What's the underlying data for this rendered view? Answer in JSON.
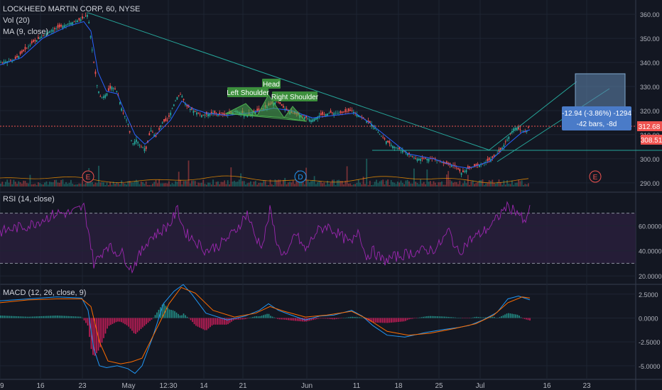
{
  "header": {
    "title": "LOCKHEED MARTIN CORP, 60, NYSE",
    "vol": "Vol (20)",
    "ma": "MA (9, close)"
  },
  "chart_data": [
    {
      "type": "line",
      "subtype": "candlestick",
      "symbol": "LOCKHEED MARTIN CORP",
      "interval": "60",
      "exchange": "NYSE",
      "y_ticks": [
        "360.00",
        "350.00",
        "340.00",
        "330.00",
        "320.00",
        "310.00",
        "300.00",
        "290.00"
      ],
      "ylim": [
        287,
        363
      ],
      "x_ticks": [
        "9",
        "16",
        "23",
        "May",
        "12:30",
        "14",
        "21",
        "Jun",
        "11",
        "18",
        "25",
        "Jul",
        "16",
        "23"
      ],
      "last_price": "312.68",
      "last_price_value": 312.68,
      "prev_label": "308.51",
      "prev_label_value": 308.51,
      "series": [
        {
          "name": "Price",
          "points": [
            [
              0,
              340
            ],
            [
              20,
              341
            ],
            [
              45,
              348
            ],
            [
              70,
              353
            ],
            [
              95,
              356
            ],
            [
              115,
              358
            ],
            [
              124,
              360
            ],
            [
              127,
              352
            ],
            [
              132,
              340
            ],
            [
              137,
              330
            ],
            [
              142,
              325
            ],
            [
              150,
              327
            ],
            [
              157,
              330
            ],
            [
              165,
              328
            ],
            [
              172,
              320
            ],
            [
              180,
              315
            ],
            [
              186,
              306
            ],
            [
              192,
              308
            ],
            [
              198,
              305
            ],
            [
              206,
              304
            ],
            [
              212,
              312
            ],
            [
              220,
              309
            ],
            [
              228,
              315
            ],
            [
              236,
              316
            ],
            [
              244,
              322
            ],
            [
              250,
              326
            ],
            [
              255,
              327
            ],
            [
              262,
              322
            ],
            [
              272,
              320
            ],
            [
              285,
              318
            ],
            [
              300,
              319
            ],
            [
              318,
              318
            ],
            [
              332,
              320
            ],
            [
              348,
              318
            ],
            [
              365,
              320
            ],
            [
              378,
              322
            ],
            [
              390,
              324
            ],
            [
              400,
              321
            ],
            [
              410,
              319
            ],
            [
              425,
              318
            ],
            [
              438,
              316
            ],
            [
              450,
              318
            ],
            [
              465,
              319
            ],
            [
              480,
              319
            ],
            [
              495,
              320
            ],
            [
              505,
              318
            ],
            [
              515,
              316
            ],
            [
              525,
              314
            ],
            [
              535,
              310
            ],
            [
              545,
              307
            ],
            [
              555,
              305
            ],
            [
              570,
              303
            ],
            [
              585,
              300
            ],
            [
              598,
              300
            ],
            [
              612,
              300
            ],
            [
              625,
              298
            ],
            [
              640,
              297
            ],
            [
              650,
              294
            ],
            [
              660,
              296
            ],
            [
              670,
              297
            ],
            [
              680,
              298
            ],
            [
              692,
              300
            ],
            [
              700,
              302
            ],
            [
              708,
              305
            ],
            [
              716,
              309
            ],
            [
              724,
              313
            ],
            [
              732,
              312
            ],
            [
              740,
              311
            ],
            [
              746,
              314
            ]
          ]
        },
        {
          "name": "MA (9, close)",
          "points": [
            [
              0,
              339
            ],
            [
              30,
              342
            ],
            [
              60,
              350
            ],
            [
              95,
              355
            ],
            [
              118,
              357
            ],
            [
              128,
              353
            ],
            [
              138,
              336
            ],
            [
              150,
              328
            ],
            [
              165,
              327
            ],
            [
              178,
              318
            ],
            [
              190,
              310
            ],
            [
              204,
              306
            ],
            [
              220,
              310
            ],
            [
              240,
              316
            ],
            [
              256,
              324
            ],
            [
              270,
              321
            ],
            [
              290,
              319
            ],
            [
              320,
              318
            ],
            [
              350,
              319
            ],
            [
              385,
              321
            ],
            [
              410,
              320
            ],
            [
              440,
              317
            ],
            [
              470,
              318
            ],
            [
              500,
              319
            ],
            [
              520,
              315
            ],
            [
              545,
              309
            ],
            [
              575,
              302
            ],
            [
              610,
              300
            ],
            [
              640,
              297
            ],
            [
              660,
              296
            ],
            [
              690,
              299
            ],
            [
              715,
              306
            ],
            [
              735,
              311
            ],
            [
              746,
              312
            ]
          ]
        }
      ],
      "annotations": [
        "Left Shoulder",
        "Head",
        "Right Shoulder"
      ],
      "event_markers": [
        "E",
        "D",
        "E"
      ],
      "measure": {
        "line1": "-12.94 (-3.86%) -1294",
        "line2": "-42 bars, -8d"
      },
      "colors": {
        "up": "#26a69a",
        "down": "#ef5350",
        "ma": "#2962ff",
        "pattern": "#4caf50",
        "trend": "#26a69a"
      }
    },
    {
      "type": "line",
      "title": "RSI (14, close)",
      "ylim": [
        15,
        85
      ],
      "y_ticks": [
        "60.0000",
        "40.0000",
        "20.0000"
      ],
      "bands": [
        70,
        30
      ],
      "series": [
        {
          "name": "RSI",
          "points": [
            [
              0,
              55
            ],
            [
              20,
              58
            ],
            [
              40,
              60
            ],
            [
              60,
              65
            ],
            [
              80,
              70
            ],
            [
              100,
              70
            ],
            [
              118,
              75
            ],
            [
              125,
              55
            ],
            [
              132,
              30
            ],
            [
              140,
              35
            ],
            [
              150,
              45
            ],
            [
              160,
              40
            ],
            [
              172,
              38
            ],
            [
              185,
              25
            ],
            [
              195,
              35
            ],
            [
              210,
              50
            ],
            [
              225,
              55
            ],
            [
              240,
              62
            ],
            [
              250,
              73
            ],
            [
              260,
              55
            ],
            [
              275,
              48
            ],
            [
              290,
              40
            ],
            [
              310,
              45
            ],
            [
              330,
              55
            ],
            [
              348,
              70
            ],
            [
              360,
              50
            ],
            [
              370,
              45
            ],
            [
              380,
              72
            ],
            [
              392,
              42
            ],
            [
              405,
              35
            ],
            [
              415,
              55
            ],
            [
              430,
              40
            ],
            [
              445,
              55
            ],
            [
              460,
              60
            ],
            [
              480,
              52
            ],
            [
              495,
              45
            ],
            [
              505,
              58
            ],
            [
              515,
              35
            ],
            [
              525,
              40
            ],
            [
              540,
              32
            ],
            [
              555,
              35
            ],
            [
              575,
              38
            ],
            [
              595,
              40
            ],
            [
              615,
              42
            ],
            [
              632,
              56
            ],
            [
              645,
              38
            ],
            [
              660,
              48
            ],
            [
              680,
              55
            ],
            [
              695,
              62
            ],
            [
              712,
              75
            ],
            [
              728,
              72
            ],
            [
              740,
              60
            ],
            [
              746,
              78
            ]
          ]
        }
      ],
      "colors": {
        "line": "#9c27b0",
        "band_fill": "#2a1f3d"
      }
    },
    {
      "type": "line",
      "title": "MACD (12, 26, close, 9)",
      "ylim": [
        -6.2,
        3.3
      ],
      "y_ticks": [
        "2.5000",
        "0.0000",
        "-2.5000",
        "-5.0000"
      ],
      "series": [
        {
          "name": "MACD",
          "points": [
            [
              0,
              1.8
            ],
            [
              40,
              2.0
            ],
            [
              80,
              2.2
            ],
            [
              115,
              2.1
            ],
            [
              124,
              0.8
            ],
            [
              132,
              -3.2
            ],
            [
              140,
              -5.0
            ],
            [
              150,
              -5.2
            ],
            [
              165,
              -5.0
            ],
            [
              180,
              -5.3
            ],
            [
              190,
              -5.8
            ],
            [
              200,
              -5.0
            ],
            [
              215,
              -2.0
            ],
            [
              230,
              1.5
            ],
            [
              245,
              2.8
            ],
            [
              258,
              3.5
            ],
            [
              270,
              2.5
            ],
            [
              290,
              0.5
            ],
            [
              320,
              -0.2
            ],
            [
              345,
              0.2
            ],
            [
              365,
              0.8
            ],
            [
              378,
              1.5
            ],
            [
              392,
              0.8
            ],
            [
              410,
              0.3
            ],
            [
              430,
              -0.2
            ],
            [
              450,
              0.2
            ],
            [
              470,
              0.3
            ],
            [
              495,
              0.8
            ],
            [
              510,
              0.2
            ],
            [
              525,
              -0.8
            ],
            [
              545,
              -1.8
            ],
            [
              570,
              -2.0
            ],
            [
              600,
              -1.5
            ],
            [
              625,
              -1.2
            ],
            [
              645,
              -1.0
            ],
            [
              660,
              -0.8
            ],
            [
              680,
              -0.2
            ],
            [
              700,
              0.6
            ],
            [
              715,
              2.0
            ],
            [
              730,
              2.3
            ],
            [
              746,
              1.9
            ]
          ]
        },
        {
          "name": "Signal",
          "points": [
            [
              0,
              1.6
            ],
            [
              40,
              1.9
            ],
            [
              80,
              2.0
            ],
            [
              115,
              2.0
            ],
            [
              128,
              1.2
            ],
            [
              140,
              -2.5
            ],
            [
              152,
              -4.5
            ],
            [
              170,
              -4.8
            ],
            [
              185,
              -4.6
            ],
            [
              200,
              -4.2
            ],
            [
              220,
              -1.2
            ],
            [
              238,
              1.5
            ],
            [
              255,
              3.2
            ],
            [
              275,
              2.6
            ],
            [
              300,
              0.8
            ],
            [
              330,
              0.1
            ],
            [
              360,
              0.5
            ],
            [
              380,
              1.2
            ],
            [
              400,
              0.7
            ],
            [
              430,
              0.1
            ],
            [
              460,
              0.3
            ],
            [
              495,
              0.7
            ],
            [
              520,
              -0.2
            ],
            [
              545,
              -1.4
            ],
            [
              575,
              -1.8
            ],
            [
              605,
              -1.6
            ],
            [
              640,
              -1.1
            ],
            [
              670,
              -0.6
            ],
            [
              695,
              0.3
            ],
            [
              715,
              1.6
            ],
            [
              735,
              2.2
            ],
            [
              746,
              2.1
            ]
          ]
        }
      ],
      "colors": {
        "macd": "#2196f3",
        "signal": "#ff6d00",
        "hist_up": "#26a69a",
        "hist_down": "#e91e63"
      }
    }
  ]
}
